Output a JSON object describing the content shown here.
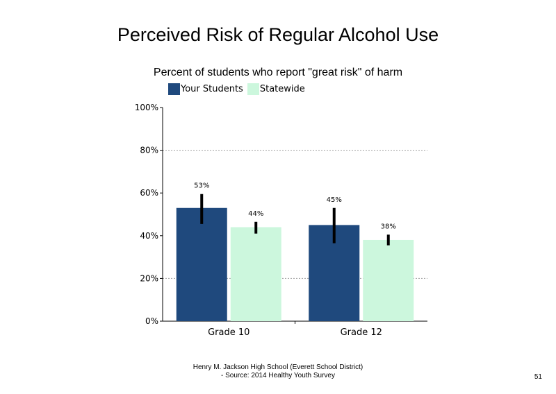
{
  "colors": {
    "your_students": "#1f497d",
    "statewide": "#ccf7dd",
    "error_bar": "#000000",
    "gridline": "#a0a0a0",
    "axis": "#000000"
  },
  "legend": {
    "items": [
      {
        "label": "Your Students",
        "color": "#1f497d"
      },
      {
        "label": "Statewide",
        "color": "#ccf7dd"
      }
    ]
  },
  "footer": {
    "line1": "Henry M. Jackson High School (Everett School District)",
    "line2": "- Source: 2014 Healthy Youth Survey"
  },
  "page_number": "51",
  "chart_data": {
    "type": "bar",
    "title": "Perceived Risk of Regular Alcohol Use",
    "subtitle": "Percent of students who report \"great risk\" of harm",
    "categories": [
      "Grade 10",
      "Grade 12"
    ],
    "series": [
      {
        "name": "Your Students",
        "values": [
          53,
          45
        ],
        "data_labels": [
          "53%",
          "45%"
        ],
        "error_low": [
          45.5,
          36.5
        ],
        "error_high": [
          59.5,
          53
        ]
      },
      {
        "name": "Statewide",
        "values": [
          44,
          38
        ],
        "data_labels": [
          "44%",
          "38%"
        ],
        "error_low": [
          41,
          35.5
        ],
        "error_high": [
          46.5,
          40.5
        ]
      }
    ],
    "ylim": [
      0,
      100
    ],
    "yticks": [
      0,
      20,
      40,
      60,
      80,
      100
    ],
    "ytick_labels": [
      "0%",
      "20%",
      "40%",
      "60%",
      "80%",
      "100%"
    ],
    "gridlines": [
      20,
      80
    ],
    "xlabel": "",
    "ylabel": "",
    "legend_position": "top-left"
  }
}
